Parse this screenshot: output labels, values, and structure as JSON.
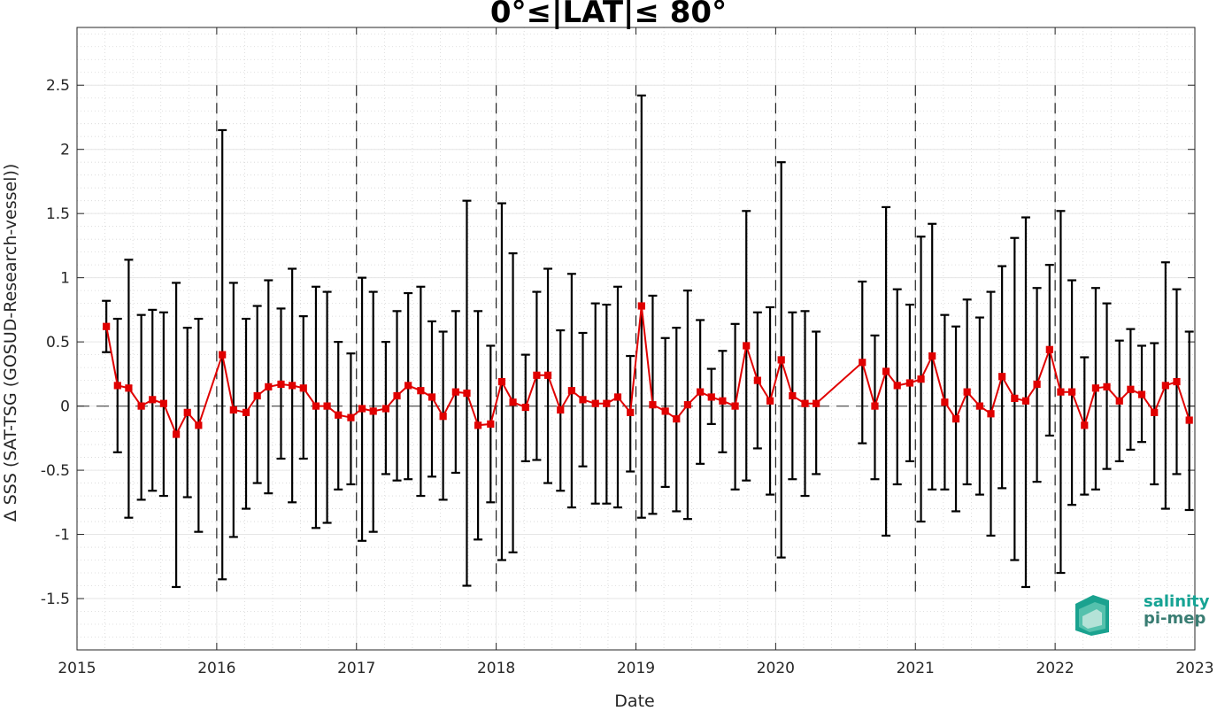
{
  "chart_data": {
    "type": "line",
    "title": "0°≤|LAT|≤ 80°",
    "xlabel": "Date",
    "ylabel": "Δ SSS (SAT-TSG (GOSUD-Research-vessel))",
    "x_tick_labels": [
      "2015",
      "2016",
      "2017",
      "2018",
      "2019",
      "2020",
      "2021",
      "2022",
      "2023"
    ],
    "xlim": [
      2015,
      2023
    ],
    "y_tick_values": [
      -1.5,
      -1,
      -0.5,
      0,
      0.5,
      1,
      1.5,
      2,
      2.5
    ],
    "y_tick_labels": [
      "-1.5",
      "-1",
      "-0.5",
      "0",
      "0.5",
      "1",
      "1.5",
      "2",
      "2.5"
    ],
    "ylim": [
      -1.9,
      2.95
    ],
    "grid": true,
    "year_boundaries": [
      2016,
      2017,
      2018,
      2019,
      2020,
      2021,
      2022
    ],
    "series": [
      {
        "color": "#e00000",
        "errorbar_color": "#000000",
        "points": [
          {
            "x": 2015.21,
            "y": 0.62,
            "lo": 0.42,
            "hi": 0.82
          },
          {
            "x": 2015.29,
            "y": 0.16,
            "lo": -0.36,
            "hi": 0.68
          },
          {
            "x": 2015.37,
            "y": 0.14,
            "lo": -0.87,
            "hi": 1.14
          },
          {
            "x": 2015.46,
            "y": 0.0,
            "lo": -0.73,
            "hi": 0.71
          },
          {
            "x": 2015.54,
            "y": 0.05,
            "lo": -0.66,
            "hi": 0.75
          },
          {
            "x": 2015.62,
            "y": 0.02,
            "lo": -0.7,
            "hi": 0.73
          },
          {
            "x": 2015.71,
            "y": -0.22,
            "lo": -1.41,
            "hi": 0.96
          },
          {
            "x": 2015.79,
            "y": -0.05,
            "lo": -0.71,
            "hi": 0.61
          },
          {
            "x": 2015.87,
            "y": -0.15,
            "lo": -0.98,
            "hi": 0.68
          },
          {
            "x": 2016.04,
            "y": 0.4,
            "lo": -1.35,
            "hi": 2.15
          },
          {
            "x": 2016.12,
            "y": -0.03,
            "lo": -1.02,
            "hi": 0.96
          },
          {
            "x": 2016.21,
            "y": -0.05,
            "lo": -0.8,
            "hi": 0.68
          },
          {
            "x": 2016.29,
            "y": 0.08,
            "lo": -0.6,
            "hi": 0.78
          },
          {
            "x": 2016.37,
            "y": 0.15,
            "lo": -0.68,
            "hi": 0.98
          },
          {
            "x": 2016.46,
            "y": 0.17,
            "lo": -0.41,
            "hi": 0.76
          },
          {
            "x": 2016.54,
            "y": 0.16,
            "lo": -0.75,
            "hi": 1.07
          },
          {
            "x": 2016.62,
            "y": 0.14,
            "lo": -0.41,
            "hi": 0.7
          },
          {
            "x": 2016.71,
            "y": 0.0,
            "lo": -0.95,
            "hi": 0.93
          },
          {
            "x": 2016.79,
            "y": 0.0,
            "lo": -0.91,
            "hi": 0.89
          },
          {
            "x": 2016.87,
            "y": -0.07,
            "lo": -0.65,
            "hi": 0.5
          },
          {
            "x": 2016.96,
            "y": -0.09,
            "lo": -0.61,
            "hi": 0.41
          },
          {
            "x": 2017.04,
            "y": -0.02,
            "lo": -1.05,
            "hi": 1.0
          },
          {
            "x": 2017.12,
            "y": -0.04,
            "lo": -0.98,
            "hi": 0.89
          },
          {
            "x": 2017.21,
            "y": -0.02,
            "lo": -0.53,
            "hi": 0.5
          },
          {
            "x": 2017.29,
            "y": 0.08,
            "lo": -0.58,
            "hi": 0.74
          },
          {
            "x": 2017.37,
            "y": 0.16,
            "lo": -0.57,
            "hi": 0.88
          },
          {
            "x": 2017.46,
            "y": 0.12,
            "lo": -0.7,
            "hi": 0.93
          },
          {
            "x": 2017.54,
            "y": 0.07,
            "lo": -0.55,
            "hi": 0.66
          },
          {
            "x": 2017.62,
            "y": -0.08,
            "lo": -0.73,
            "hi": 0.58
          },
          {
            "x": 2017.71,
            "y": 0.11,
            "lo": -0.52,
            "hi": 0.74
          },
          {
            "x": 2017.79,
            "y": 0.1,
            "lo": -1.4,
            "hi": 1.6
          },
          {
            "x": 2017.87,
            "y": -0.15,
            "lo": -1.04,
            "hi": 0.74
          },
          {
            "x": 2017.96,
            "y": -0.14,
            "lo": -0.75,
            "hi": 0.47
          },
          {
            "x": 2018.04,
            "y": 0.19,
            "lo": -1.2,
            "hi": 1.58
          },
          {
            "x": 2018.12,
            "y": 0.03,
            "lo": -1.14,
            "hi": 1.19
          },
          {
            "x": 2018.21,
            "y": -0.01,
            "lo": -0.43,
            "hi": 0.4
          },
          {
            "x": 2018.29,
            "y": 0.24,
            "lo": -0.42,
            "hi": 0.89
          },
          {
            "x": 2018.37,
            "y": 0.24,
            "lo": -0.6,
            "hi": 1.07
          },
          {
            "x": 2018.46,
            "y": -0.03,
            "lo": -0.66,
            "hi": 0.59
          },
          {
            "x": 2018.54,
            "y": 0.12,
            "lo": -0.79,
            "hi": 1.03
          },
          {
            "x": 2018.62,
            "y": 0.05,
            "lo": -0.47,
            "hi": 0.57
          },
          {
            "x": 2018.71,
            "y": 0.02,
            "lo": -0.76,
            "hi": 0.8
          },
          {
            "x": 2018.79,
            "y": 0.02,
            "lo": -0.76,
            "hi": 0.79
          },
          {
            "x": 2018.87,
            "y": 0.07,
            "lo": -0.79,
            "hi": 0.93
          },
          {
            "x": 2018.96,
            "y": -0.05,
            "lo": -0.51,
            "hi": 0.39
          },
          {
            "x": 2019.04,
            "y": 0.78,
            "lo": -0.87,
            "hi": 2.42
          },
          {
            "x": 2019.12,
            "y": 0.01,
            "lo": -0.84,
            "hi": 0.86
          },
          {
            "x": 2019.21,
            "y": -0.04,
            "lo": -0.63,
            "hi": 0.53
          },
          {
            "x": 2019.29,
            "y": -0.1,
            "lo": -0.82,
            "hi": 0.61
          },
          {
            "x": 2019.37,
            "y": 0.01,
            "lo": -0.88,
            "hi": 0.9
          },
          {
            "x": 2019.46,
            "y": 0.11,
            "lo": -0.45,
            "hi": 0.67
          },
          {
            "x": 2019.54,
            "y": 0.07,
            "lo": -0.14,
            "hi": 0.29
          },
          {
            "x": 2019.62,
            "y": 0.04,
            "lo": -0.36,
            "hi": 0.43
          },
          {
            "x": 2019.71,
            "y": 0.0,
            "lo": -0.65,
            "hi": 0.64
          },
          {
            "x": 2019.79,
            "y": 0.47,
            "lo": -0.58,
            "hi": 1.52
          },
          {
            "x": 2019.87,
            "y": 0.2,
            "lo": -0.33,
            "hi": 0.73
          },
          {
            "x": 2019.96,
            "y": 0.04,
            "lo": -0.69,
            "hi": 0.77
          },
          {
            "x": 2020.04,
            "y": 0.36,
            "lo": -1.18,
            "hi": 1.9
          },
          {
            "x": 2020.12,
            "y": 0.08,
            "lo": -0.57,
            "hi": 0.73
          },
          {
            "x": 2020.21,
            "y": 0.02,
            "lo": -0.7,
            "hi": 0.74
          },
          {
            "x": 2020.29,
            "y": 0.02,
            "lo": -0.53,
            "hi": 0.58
          },
          {
            "x": 2020.62,
            "y": 0.34,
            "lo": -0.29,
            "hi": 0.97
          },
          {
            "x": 2020.71,
            "y": 0.0,
            "lo": -0.57,
            "hi": 0.55
          },
          {
            "x": 2020.79,
            "y": 0.27,
            "lo": -1.01,
            "hi": 1.55
          },
          {
            "x": 2020.87,
            "y": 0.16,
            "lo": -0.61,
            "hi": 0.91
          },
          {
            "x": 2020.96,
            "y": 0.18,
            "lo": -0.43,
            "hi": 0.79
          },
          {
            "x": 2021.04,
            "y": 0.21,
            "lo": -0.9,
            "hi": 1.32
          },
          {
            "x": 2021.12,
            "y": 0.39,
            "lo": -0.65,
            "hi": 1.42
          },
          {
            "x": 2021.21,
            "y": 0.03,
            "lo": -0.65,
            "hi": 0.71
          },
          {
            "x": 2021.29,
            "y": -0.1,
            "lo": -0.82,
            "hi": 0.62
          },
          {
            "x": 2021.37,
            "y": 0.11,
            "lo": -0.61,
            "hi": 0.83
          },
          {
            "x": 2021.46,
            "y": 0.0,
            "lo": -0.69,
            "hi": 0.69
          },
          {
            "x": 2021.54,
            "y": -0.06,
            "lo": -1.01,
            "hi": 0.89
          },
          {
            "x": 2021.62,
            "y": 0.23,
            "lo": -0.64,
            "hi": 1.09
          },
          {
            "x": 2021.71,
            "y": 0.06,
            "lo": -1.2,
            "hi": 1.31
          },
          {
            "x": 2021.79,
            "y": 0.04,
            "lo": -1.41,
            "hi": 1.47
          },
          {
            "x": 2021.87,
            "y": 0.17,
            "lo": -0.59,
            "hi": 0.92
          },
          {
            "x": 2021.96,
            "y": 0.44,
            "lo": -0.23,
            "hi": 1.1
          },
          {
            "x": 2022.04,
            "y": 0.11,
            "lo": -1.3,
            "hi": 1.52
          },
          {
            "x": 2022.12,
            "y": 0.11,
            "lo": -0.77,
            "hi": 0.98
          },
          {
            "x": 2022.21,
            "y": -0.15,
            "lo": -0.69,
            "hi": 0.38
          },
          {
            "x": 2022.29,
            "y": 0.14,
            "lo": -0.65,
            "hi": 0.92
          },
          {
            "x": 2022.37,
            "y": 0.15,
            "lo": -0.49,
            "hi": 0.8
          },
          {
            "x": 2022.46,
            "y": 0.04,
            "lo": -0.43,
            "hi": 0.51
          },
          {
            "x": 2022.54,
            "y": 0.13,
            "lo": -0.34,
            "hi": 0.6
          },
          {
            "x": 2022.62,
            "y": 0.09,
            "lo": -0.28,
            "hi": 0.47
          },
          {
            "x": 2022.71,
            "y": -0.05,
            "lo": -0.61,
            "hi": 0.49
          },
          {
            "x": 2022.79,
            "y": 0.16,
            "lo": -0.8,
            "hi": 1.12
          },
          {
            "x": 2022.87,
            "y": 0.19,
            "lo": -0.53,
            "hi": 0.91
          },
          {
            "x": 2022.96,
            "y": -0.11,
            "lo": -0.81,
            "hi": 0.58
          }
        ]
      }
    ]
  },
  "logo": {
    "line1": "salinity",
    "line2": "pi-mep",
    "color1": "#16a394",
    "color2": "#3a7d73"
  }
}
